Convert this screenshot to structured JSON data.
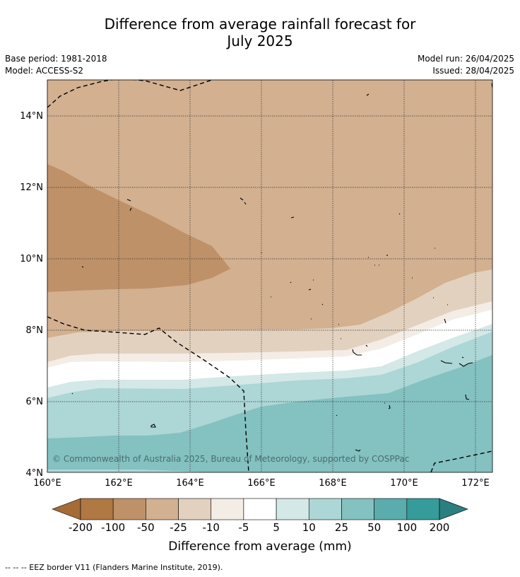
{
  "title_line1": "Difference from average rainfall forecast for",
  "title_line2": "July 2025",
  "base_period": "Base period: 1981-2018",
  "model": "Model: ACCESS-S2",
  "model_run": "Model run: 26/04/2025",
  "issued": "Issued: 28/04/2025",
  "copyright": "© Commonwealth of Australia 2025, Bureau of Meteorology, supported by COSPPac",
  "lat_labels": [
    "14°N",
    "12°N",
    "10°N",
    "8°N",
    "6°N",
    "4°N"
  ],
  "lon_labels": [
    "160°E",
    "162°E",
    "164°E",
    "166°E",
    "168°E",
    "170°E",
    "172°E"
  ],
  "legend": {
    "title": "Difference from average (mm)",
    "tick_labels": [
      "-200",
      "-100",
      "-50",
      "-25",
      "-10",
      "-5",
      "5",
      "10",
      "25",
      "50",
      "100",
      "200"
    ],
    "colors": [
      "#a56c38",
      "#b07843",
      "#bf9168",
      "#d2b090",
      "#e3d1bf",
      "#f3ede6",
      "#ffffff",
      "#d3e8e7",
      "#add6d6",
      "#84c1c1",
      "#5aacad",
      "#369b9b",
      "#2a7f80"
    ]
  },
  "footnote": "--  --  -- EEZ border V11 (Flanders Marine Institute, 2019)."
}
